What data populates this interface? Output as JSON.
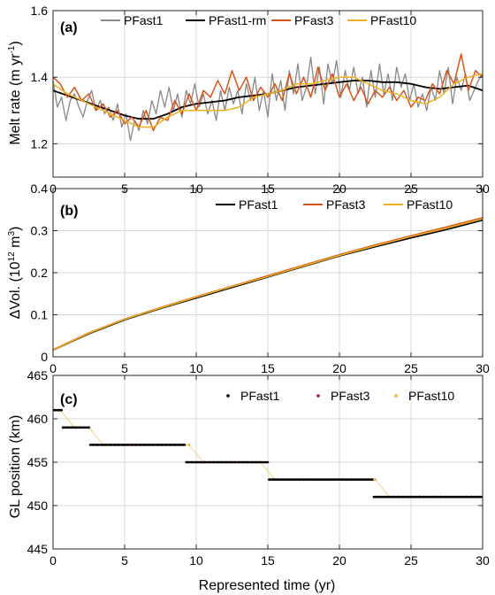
{
  "colors": {
    "PFast1": "#888888",
    "PFast1-rm": "#000000",
    "PFast3": "#d95319",
    "PFast10": "#edb120",
    "b_PFast1": "#000000",
    "c_PFast1": "#000000",
    "c_PFast3": "#a2142f",
    "c_PFast10": "#edb120"
  },
  "chart_data": [
    {
      "type": "line",
      "panel_label": "(a)",
      "ylabel": "Melt rate (m yr-1)",
      "ylabel_parts": {
        "pre": "Melt rate (m yr",
        "sup": "-1",
        "post": ")"
      },
      "xlim": [
        0,
        30
      ],
      "ylim": [
        1.1,
        1.6
      ],
      "xticks": [
        0,
        5,
        10,
        15,
        20,
        25,
        30
      ],
      "yticks": [
        1.2,
        1.4,
        1.6
      ],
      "ytick_labels": [
        "1.2",
        "1.4",
        "1.6"
      ],
      "grid": true,
      "legend_position": "top",
      "series": [
        {
          "name": "PFast1",
          "key": "PFast1",
          "width": 1.3,
          "x": [
            0,
            0.3,
            0.6,
            0.9,
            1.2,
            1.5,
            1.8,
            2.1,
            2.4,
            2.7,
            3,
            3.3,
            3.6,
            3.9,
            4.2,
            4.5,
            4.8,
            5.1,
            5.4,
            5.7,
            6,
            6.3,
            6.6,
            6.9,
            7.2,
            7.5,
            7.8,
            8.1,
            8.4,
            8.7,
            9,
            9.3,
            9.6,
            9.9,
            10.2,
            10.5,
            10.8,
            11.1,
            11.4,
            11.7,
            12,
            12.3,
            12.6,
            12.9,
            13.2,
            13.5,
            13.8,
            14.1,
            14.4,
            14.7,
            15,
            15.3,
            15.6,
            15.9,
            16.2,
            16.5,
            16.8,
            17.1,
            17.4,
            17.7,
            18,
            18.3,
            18.6,
            18.9,
            19.2,
            19.5,
            19.8,
            20.1,
            20.4,
            20.7,
            21,
            21.3,
            21.6,
            21.9,
            22.2,
            22.5,
            22.8,
            23.1,
            23.4,
            23.7,
            24,
            24.3,
            24.6,
            24.9,
            25.2,
            25.5,
            25.8,
            26.1,
            26.4,
            26.7,
            27,
            27.3,
            27.6,
            27.9,
            28.2,
            28.5,
            28.8,
            29.1,
            29.4,
            29.7,
            30
          ],
          "y": [
            1.39,
            1.31,
            1.34,
            1.27,
            1.33,
            1.35,
            1.31,
            1.28,
            1.33,
            1.36,
            1.3,
            1.33,
            1.29,
            1.31,
            1.27,
            1.32,
            1.25,
            1.29,
            1.21,
            1.27,
            1.24,
            1.3,
            1.26,
            1.33,
            1.29,
            1.36,
            1.31,
            1.37,
            1.3,
            1.35,
            1.28,
            1.36,
            1.32,
            1.38,
            1.31,
            1.35,
            1.29,
            1.33,
            1.27,
            1.36,
            1.3,
            1.37,
            1.32,
            1.36,
            1.29,
            1.38,
            1.33,
            1.4,
            1.3,
            1.36,
            1.28,
            1.41,
            1.33,
            1.39,
            1.3,
            1.42,
            1.35,
            1.44,
            1.33,
            1.37,
            1.46,
            1.35,
            1.43,
            1.32,
            1.44,
            1.38,
            1.45,
            1.34,
            1.42,
            1.36,
            1.43,
            1.35,
            1.4,
            1.31,
            1.42,
            1.34,
            1.44,
            1.35,
            1.41,
            1.33,
            1.43,
            1.37,
            1.41,
            1.33,
            1.38,
            1.31,
            1.35,
            1.3,
            1.37,
            1.33,
            1.42,
            1.35,
            1.43,
            1.32,
            1.4,
            1.36,
            1.41,
            1.33,
            1.36,
            1.39,
            1.41
          ]
        },
        {
          "name": "PFast1-rm",
          "key": "PFast1-rm",
          "width": 1.8,
          "x": [
            0,
            1,
            2,
            3,
            4,
            5,
            6,
            7,
            8,
            9,
            10,
            11,
            12,
            13,
            14,
            15,
            16,
            17,
            18,
            19,
            20,
            21,
            22,
            23,
            24,
            25,
            26,
            27,
            28,
            29,
            30
          ],
          "y": [
            1.36,
            1.345,
            1.33,
            1.315,
            1.3,
            1.285,
            1.275,
            1.275,
            1.29,
            1.31,
            1.32,
            1.325,
            1.33,
            1.34,
            1.345,
            1.35,
            1.36,
            1.37,
            1.375,
            1.38,
            1.385,
            1.39,
            1.39,
            1.385,
            1.385,
            1.38,
            1.37,
            1.365,
            1.37,
            1.375,
            1.36
          ]
        },
        {
          "name": "PFast3",
          "key": "PFast3",
          "width": 1.5,
          "x": [
            0,
            0.5,
            1,
            1.5,
            2,
            2.5,
            3,
            3.5,
            4,
            4.5,
            5,
            5.5,
            6,
            6.5,
            7,
            7.5,
            8,
            8.5,
            9,
            9.5,
            10,
            10.5,
            11,
            11.5,
            12,
            12.5,
            13,
            13.5,
            14,
            14.5,
            15,
            15.5,
            16,
            16.5,
            17,
            17.5,
            18,
            18.5,
            19,
            19.5,
            20,
            20.5,
            21,
            21.5,
            22,
            22.5,
            23,
            23.5,
            24,
            24.5,
            25,
            25.5,
            26,
            26.5,
            27,
            27.5,
            28,
            28.5,
            29,
            29.5,
            30
          ],
          "y": [
            1.4,
            1.38,
            1.34,
            1.37,
            1.33,
            1.35,
            1.3,
            1.32,
            1.28,
            1.3,
            1.26,
            1.28,
            1.25,
            1.3,
            1.24,
            1.28,
            1.27,
            1.33,
            1.29,
            1.35,
            1.3,
            1.36,
            1.34,
            1.39,
            1.35,
            1.42,
            1.36,
            1.4,
            1.33,
            1.37,
            1.34,
            1.38,
            1.33,
            1.41,
            1.35,
            1.4,
            1.34,
            1.43,
            1.36,
            1.41,
            1.34,
            1.38,
            1.33,
            1.37,
            1.32,
            1.36,
            1.34,
            1.37,
            1.33,
            1.36,
            1.31,
            1.34,
            1.33,
            1.38,
            1.35,
            1.42,
            1.38,
            1.47,
            1.36,
            1.42,
            1.4
          ]
        },
        {
          "name": "PFast10",
          "key": "PFast10",
          "width": 1.5,
          "x": [
            0,
            1,
            2,
            3,
            4,
            5,
            6,
            7,
            8,
            9,
            10,
            11,
            12,
            13,
            14,
            15,
            16,
            17,
            18,
            19,
            20,
            21,
            22,
            23,
            24,
            25,
            26,
            27,
            28,
            29,
            30
          ],
          "y": [
            1.38,
            1.35,
            1.33,
            1.31,
            1.29,
            1.27,
            1.25,
            1.25,
            1.28,
            1.3,
            1.3,
            1.3,
            1.3,
            1.31,
            1.34,
            1.35,
            1.36,
            1.38,
            1.38,
            1.39,
            1.4,
            1.4,
            1.38,
            1.36,
            1.35,
            1.33,
            1.32,
            1.34,
            1.38,
            1.4,
            1.41
          ]
        }
      ]
    },
    {
      "type": "line",
      "panel_label": "(b)",
      "ylabel": "ΔVol. (1012 m3)",
      "ylabel_parts": {
        "pre": "ΔVol. (10",
        "sup": "12",
        "mid": " m",
        "sup2": "3",
        "post": ")"
      },
      "xlim": [
        0,
        30
      ],
      "ylim": [
        0,
        0.4
      ],
      "xticks": [
        0,
        5,
        10,
        15,
        20,
        25,
        30
      ],
      "yticks": [
        0,
        0.1,
        0.2,
        0.3,
        0.4
      ],
      "ytick_labels": [
        "0",
        "0.1",
        "0.2",
        "0.3",
        "0.4"
      ],
      "grid": true,
      "legend_position": "top-left",
      "series": [
        {
          "name": "PFast1",
          "key": "b_PFast1",
          "width": 1.8,
          "x": [
            0,
            2.5,
            5,
            7.5,
            10,
            12.5,
            15,
            17.5,
            20,
            22.5,
            25,
            27.5,
            30
          ],
          "y": [
            0.016,
            0.055,
            0.088,
            0.115,
            0.14,
            0.165,
            0.19,
            0.215,
            0.24,
            0.262,
            0.283,
            0.303,
            0.325
          ]
        },
        {
          "name": "PFast3",
          "key": "PFast3",
          "width": 1.5,
          "x": [
            0,
            2.5,
            5,
            7.5,
            10,
            12.5,
            15,
            17.5,
            20,
            22.5,
            25,
            27.5,
            30
          ],
          "y": [
            0.017,
            0.057,
            0.09,
            0.117,
            0.143,
            0.168,
            0.193,
            0.218,
            0.243,
            0.266,
            0.288,
            0.309,
            0.331
          ]
        },
        {
          "name": "PFast10",
          "key": "PFast10",
          "width": 1.5,
          "x": [
            0,
            2.5,
            5,
            7.5,
            10,
            12.5,
            15,
            17.5,
            20,
            22.5,
            25,
            27.5,
            30
          ],
          "y": [
            0.016,
            0.056,
            0.089,
            0.116,
            0.142,
            0.167,
            0.191,
            0.216,
            0.241,
            0.264,
            0.286,
            0.306,
            0.328
          ]
        }
      ]
    },
    {
      "type": "scatter",
      "panel_label": "(c)",
      "ylabel": "GL position (km)",
      "xlabel": "Represented time (yr)",
      "xlim": [
        0,
        30
      ],
      "ylim": [
        445,
        465
      ],
      "xticks": [
        0,
        5,
        10,
        15,
        20,
        25,
        30
      ],
      "yticks": [
        445,
        450,
        455,
        460,
        465
      ],
      "ytick_labels": [
        "445",
        "450",
        "455",
        "460",
        "465"
      ],
      "grid": true,
      "legend_position": "top",
      "steps": [
        {
          "start": 0,
          "end": 0.7,
          "value": 461
        },
        {
          "start": 0.7,
          "end": 2.6,
          "value": 459
        },
        {
          "start": 2.6,
          "end": 9.2,
          "value": 457
        },
        {
          "start": 9.2,
          "end": 15.0,
          "value": 455
        },
        {
          "start": 15.0,
          "end": 22.4,
          "value": 453
        },
        {
          "start": 22.4,
          "end": 30,
          "value": 451
        }
      ],
      "series": [
        {
          "name": "PFast1",
          "key": "c_PFast1",
          "step": 0.1,
          "offset": 0.0
        },
        {
          "name": "PFast3",
          "key": "c_PFast3",
          "step": 0.3,
          "offset": 0.1
        },
        {
          "name": "PFast10",
          "key": "c_PFast10",
          "step": 1.0,
          "offset": 0.5
        }
      ]
    }
  ]
}
